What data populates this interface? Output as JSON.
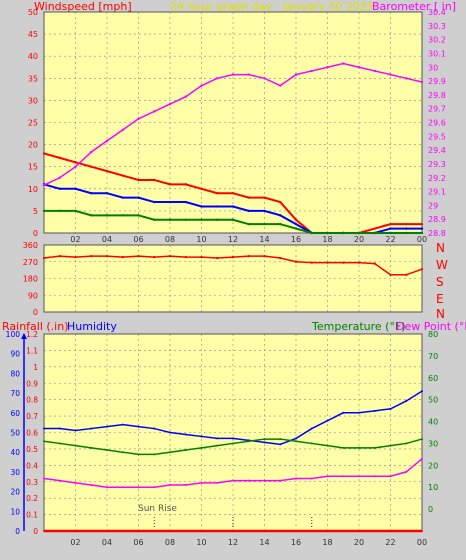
{
  "header": {
    "left_title": "Windspeed [mph]",
    "center_title": "24 hour graph day - January 30 2025",
    "right_title": "Barometer [ in]"
  },
  "colors": {
    "plot_bg": "#ffffa8",
    "page_bg": "#cfcfcf",
    "gust": "#ff0000",
    "wind_avg": "#0000ff",
    "wind_low": "#008000",
    "barometer": "#ff00ff",
    "direction": "#ff0000",
    "humidity": "#0000ff",
    "temperature": "#008000",
    "dew_point": "#ff00ff",
    "rainfall": "#ff0000"
  },
  "compass": [
    "N",
    "W",
    "S",
    "E",
    "N"
  ],
  "lower_header": {
    "rainfall": "Rainfall (.in)",
    "humidity": "Humidity",
    "temperature": "Temperature (°F)",
    "dew_point": "Dew Point (°F)"
  },
  "annotations": {
    "sun_rise": "Sun Rise"
  },
  "chart_data": [
    {
      "type": "line",
      "name_top": "windspeed-barometer",
      "x": [
        0,
        1,
        2,
        3,
        4,
        5,
        6,
        7,
        8,
        9,
        10,
        11,
        12,
        13,
        14,
        15,
        16,
        17,
        18,
        19,
        20,
        21,
        22,
        23,
        24
      ],
      "x_tick_labels": [
        "02",
        "04",
        "06",
        "08",
        "10",
        "12",
        "14",
        "16",
        "18",
        "20",
        "22",
        "00"
      ],
      "series": [
        {
          "name": "Windspeed [mph]",
          "axis": "left",
          "values": [
            18,
            17,
            16,
            15,
            14,
            13,
            12,
            12,
            11,
            11,
            10,
            9,
            9,
            8,
            8,
            7,
            3,
            0,
            0,
            0,
            0,
            1,
            2,
            2,
            2
          ]
        },
        {
          "name": "",
          "axis": "left",
          "values": [
            11,
            10,
            10,
            9,
            9,
            8,
            8,
            7,
            7,
            7,
            6,
            6,
            6,
            5,
            5,
            4,
            2,
            0,
            0,
            0,
            0,
            0,
            1,
            1,
            1
          ]
        },
        {
          "name": "",
          "axis": "left",
          "values": [
            5,
            5,
            5,
            4,
            4,
            4,
            4,
            3,
            3,
            3,
            3,
            3,
            3,
            2,
            2,
            2,
            1,
            0,
            0,
            0,
            0,
            0,
            0,
            0,
            0
          ]
        },
        {
          "name": "Barometer [ in]",
          "axis": "right",
          "values": [
            29.93,
            29.95,
            29.98,
            30.02,
            30.05,
            30.08,
            30.11,
            30.13,
            30.15,
            30.17,
            30.2,
            30.22,
            30.23,
            30.23,
            30.22,
            30.2,
            30.23,
            30.24,
            30.25,
            30.26,
            30.25,
            30.24,
            30.23,
            30.22,
            30.21
          ]
        }
      ],
      "ylim_left": [
        0,
        50
      ],
      "y_left_ticks": [
        0,
        5,
        10,
        15,
        20,
        25,
        30,
        35,
        40,
        45,
        50
      ],
      "ylim_right": [
        29.8,
        30.4
      ],
      "y_right_ticks": [
        "28.8",
        "28.9",
        "29",
        "29.1",
        "29.2",
        "29.3",
        "29.4",
        "29.5",
        "29.6",
        "29.7",
        "29.8",
        "29.9",
        "30",
        "30.1",
        "30.2",
        "30.3",
        "30.4"
      ]
    },
    {
      "type": "scatter",
      "name_mid": "wind-direction",
      "x": [
        0,
        1,
        2,
        3,
        4,
        5,
        6,
        7,
        8,
        9,
        10,
        11,
        12,
        13,
        14,
        15,
        16,
        17,
        18,
        19,
        20,
        21,
        22,
        23,
        24
      ],
      "values": [
        290,
        300,
        295,
        300,
        300,
        295,
        300,
        295,
        300,
        295,
        295,
        290,
        295,
        300,
        300,
        290,
        270,
        265,
        265,
        265,
        265,
        260,
        200,
        200,
        230
      ],
      "ylim": [
        0,
        360
      ],
      "y_ticks": [
        0,
        90,
        180,
        270,
        360
      ]
    },
    {
      "type": "line",
      "name_bottom": "rain-humidity-temperature",
      "x": [
        0,
        1,
        2,
        3,
        4,
        5,
        6,
        7,
        8,
        9,
        10,
        11,
        12,
        13,
        14,
        15,
        16,
        17,
        18,
        19,
        20,
        21,
        22,
        23,
        24
      ],
      "series": [
        {
          "name": "Humidity",
          "axis": "left_humidity",
          "values": [
            52,
            52,
            51,
            52,
            53,
            54,
            53,
            52,
            50,
            49,
            48,
            47,
            47,
            46,
            45,
            44,
            47,
            52,
            56,
            60,
            60,
            61,
            62,
            66,
            71
          ]
        },
        {
          "name": "Temperature (°F)",
          "axis": "right",
          "values": [
            31,
            30,
            29,
            28,
            27,
            26,
            25,
            25,
            26,
            27,
            28,
            29,
            30,
            31,
            32,
            32,
            31,
            30,
            29,
            28,
            28,
            28,
            29,
            30,
            32
          ]
        },
        {
          "name": "Dew Point (°F)",
          "axis": "right",
          "values": [
            14,
            13,
            12,
            11,
            10,
            10,
            10,
            10,
            11,
            11,
            12,
            12,
            13,
            13,
            13,
            13,
            14,
            14,
            15,
            15,
            15,
            15,
            15,
            17,
            23
          ]
        },
        {
          "name": "Rainfall (.in)",
          "axis": "left_rain",
          "values": [
            0,
            0,
            0,
            0,
            0,
            0,
            0,
            0,
            0,
            0,
            0,
            0,
            0,
            0,
            0,
            0,
            0,
            0,
            0,
            0,
            0,
            0,
            0,
            0,
            0
          ]
        }
      ],
      "ylim_rain": [
        0,
        1.2
      ],
      "y_rain_ticks": [
        "0",
        "0.1",
        "0.2",
        "0.3",
        "0.4",
        "0.5",
        "0.6",
        "0.7",
        "0.8",
        "0.9",
        "1",
        "1.1",
        "1.2"
      ],
      "ylim_humidity": [
        0,
        100
      ],
      "y_humidity_ticks": [
        0,
        10,
        20,
        30,
        40,
        50,
        60,
        70,
        80,
        90,
        100
      ],
      "ylim_right": [
        -10,
        80
      ],
      "y_right_ticks": [
        0,
        10,
        20,
        30,
        40,
        50,
        60,
        70,
        80
      ],
      "x_tick_labels": [
        "02",
        "04",
        "06",
        "08",
        "10",
        "12",
        "14",
        "16",
        "18",
        "20",
        "22",
        "00"
      ]
    }
  ]
}
